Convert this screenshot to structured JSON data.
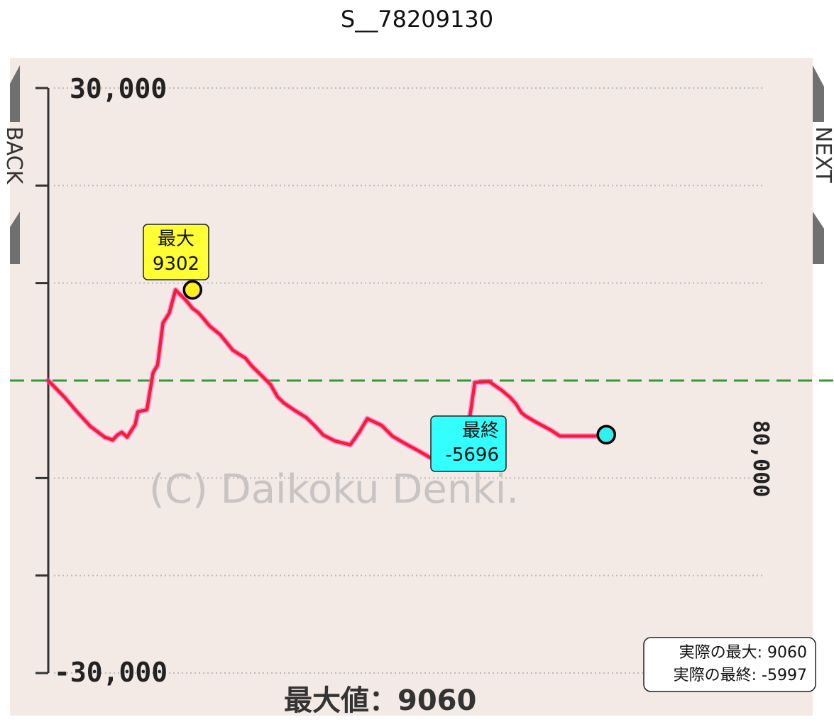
{
  "title": "S__78209130",
  "nav": {
    "back_label": "BACK",
    "next_label": "NEXT"
  },
  "watermark": "(C) Daikoku Denki.",
  "footer_label": "最大値：9060",
  "callouts": {
    "max": {
      "label": "最大",
      "value": "9302",
      "color": "#ffff33"
    },
    "final": {
      "label": "最終",
      "value": "-5696",
      "color": "#33ffff"
    }
  },
  "info_box": {
    "line1": "実際の最大: 9060",
    "line2": "実際の最終: -5997"
  },
  "colors": {
    "plot_bg": "#f3e9e5",
    "line": "#ff1a33",
    "line_glow": "#e060e0",
    "zero_line": "#339933",
    "grid": "#bbbbbb"
  },
  "chart_data": {
    "type": "line",
    "title": "S__78209130",
    "ylim": [
      -30000,
      30000
    ],
    "xlim": [
      0,
      80000
    ],
    "y_tick_labels": [
      "30,000",
      "-30,000"
    ],
    "x_tick_labels": [
      "80,000"
    ],
    "y_ticks": [
      30000,
      20000,
      10000,
      0,
      -10000,
      -20000,
      -30000
    ],
    "grid": true,
    "zero_line": true,
    "series": [
      {
        "x": [
          0,
          1800,
          3200,
          4700,
          6300,
          7200,
          7700,
          8200,
          8800,
          9700,
          10000,
          11000,
          11700,
          12200,
          12800,
          13500,
          14200,
          15400,
          16100,
          16700,
          17100,
          18000,
          19200,
          20600,
          22000,
          22700,
          23600,
          24800,
          25600,
          26300,
          27400,
          28800,
          29700,
          30700,
          32000,
          33700,
          34700,
          35600,
          37200,
          38400,
          39900,
          41500,
          42600,
          43100,
          44200,
          45200,
          46500,
          47600,
          49200,
          50600,
          51500,
          52200,
          52800,
          53200,
          54300,
          55500,
          56100,
          57100,
          57800,
          58500,
          59700,
          60800,
          61800
        ],
        "y": [
          0,
          -1700,
          -3200,
          -4700,
          -5800,
          -6100,
          -5600,
          -5300,
          -5800,
          -4500,
          -3200,
          -3000,
          800,
          1600,
          5900,
          6900,
          9302,
          8200,
          7400,
          7000,
          6600,
          5600,
          4700,
          3100,
          2300,
          1500,
          700,
          -400,
          -1700,
          -2300,
          -3000,
          -3800,
          -4600,
          -5600,
          -6200,
          -6600,
          -5300,
          -3900,
          -4600,
          -5700,
          -6500,
          -7300,
          -7900,
          -8000,
          -7400,
          -8400,
          -7200,
          -200,
          -100,
          -1000,
          -1700,
          -2400,
          -3300,
          -3600,
          -4200,
          -4800,
          -5100,
          -5696,
          -5696,
          -5696,
          -5696,
          -5696,
          -5696
        ]
      }
    ],
    "annotations": [
      {
        "label": "最大",
        "value": 9302,
        "x": 16100
      },
      {
        "label": "最終",
        "value": -5696,
        "x": 61800
      }
    ]
  }
}
